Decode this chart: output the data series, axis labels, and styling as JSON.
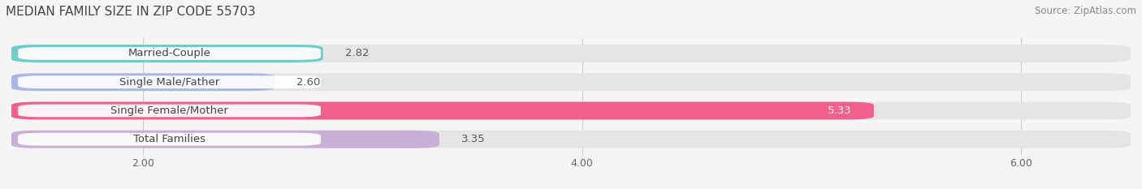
{
  "title": "MEDIAN FAMILY SIZE IN ZIP CODE 55703",
  "source": "Source: ZipAtlas.com",
  "categories": [
    "Married-Couple",
    "Single Male/Father",
    "Single Female/Mother",
    "Total Families"
  ],
  "values": [
    2.82,
    2.6,
    5.33,
    3.35
  ],
  "bar_colors": [
    "#6dcdc8",
    "#aab8e8",
    "#f0608a",
    "#c9aed6"
  ],
  "bg_color": "#f5f5f5",
  "bar_bg_color": "#e5e5e5",
  "xlim_min": 1.4,
  "xlim_max": 6.5,
  "xticks": [
    2.0,
    4.0,
    6.0
  ],
  "bar_height": 0.62,
  "value_label_color_inside": "#ffffff",
  "value_label_color_outside": "#555555",
  "title_fontsize": 11,
  "label_fontsize": 9.5,
  "tick_fontsize": 9,
  "source_fontsize": 8.5
}
